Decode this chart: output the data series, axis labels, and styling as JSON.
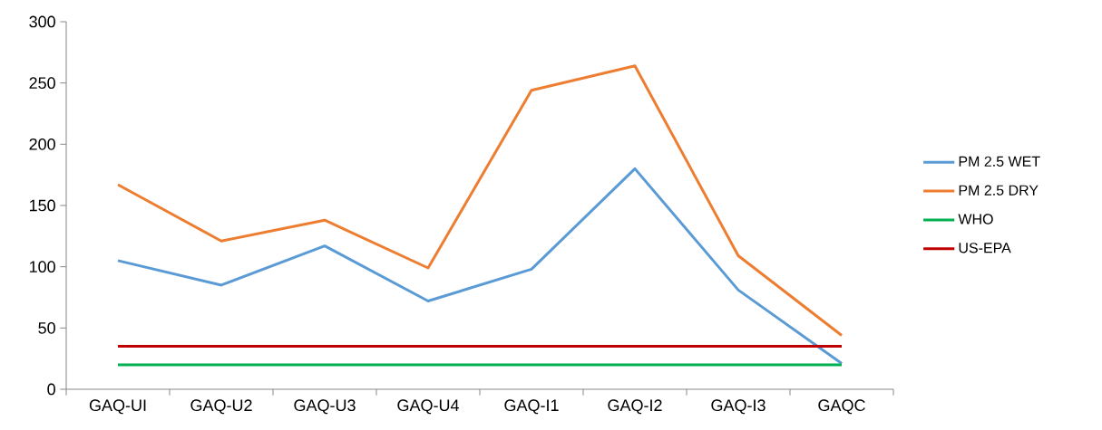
{
  "chart_data": {
    "type": "line",
    "categories": [
      "GAQ-UI",
      "GAQ-U2",
      "GAQ-U3",
      "GAQ-U4",
      "GAQ-I1",
      "GAQ-I2",
      "GAQ-I3",
      "GAQC"
    ],
    "series": [
      {
        "name": "PM 2.5 WET",
        "color": "#5b9bd5",
        "values": [
          105,
          85,
          117,
          72,
          98,
          180,
          81,
          21
        ]
      },
      {
        "name": "PM 2.5 DRY",
        "color": "#ed7d31",
        "values": [
          167,
          121,
          138,
          99,
          244,
          264,
          109,
          44
        ]
      },
      {
        "name": "WHO",
        "color": "#00b050",
        "values": [
          20,
          20,
          20,
          20,
          20,
          20,
          20,
          20
        ]
      },
      {
        "name": "US-EPA",
        "color": "#c00000",
        "values": [
          35,
          35,
          35,
          35,
          35,
          35,
          35,
          35
        ]
      }
    ],
    "ylim": [
      0,
      300
    ],
    "yticks": [
      0,
      50,
      100,
      150,
      200,
      250,
      300
    ],
    "grid": false,
    "legend": "right",
    "marker": "none",
    "line_style": "solid"
  }
}
